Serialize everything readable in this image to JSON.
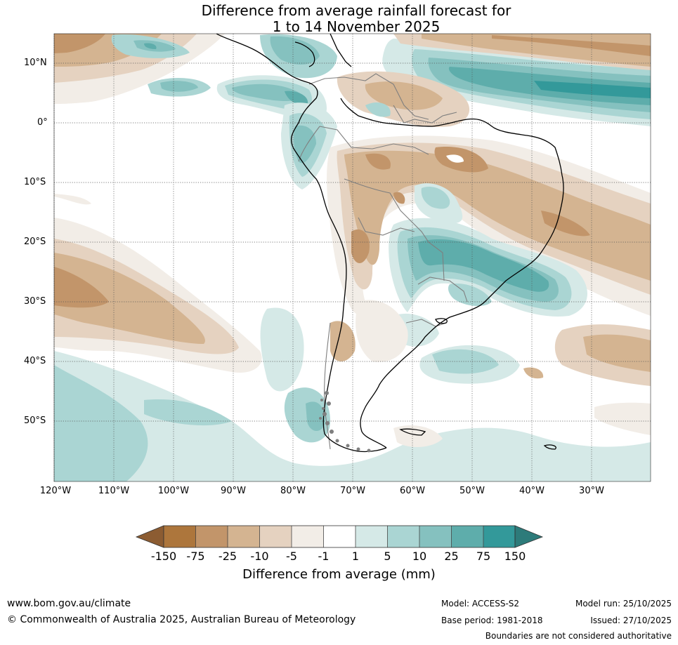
{
  "title": {
    "line1": "Difference from average rainfall forecast for",
    "line2": "1 to 14 November 2025"
  },
  "map": {
    "region": "South America and surrounding oceans",
    "lat_labels": [
      "10°N",
      "0°",
      "10°S",
      "20°S",
      "30°S",
      "40°S",
      "50°S"
    ],
    "lon_labels": [
      "120°W",
      "110°W",
      "100°W",
      "90°W",
      "80°W",
      "70°W",
      "60°W",
      "50°W",
      "40°W",
      "30°W"
    ]
  },
  "colorbar": {
    "ticks": [
      "-150",
      "-75",
      "-25",
      "-10",
      "-5",
      "-1",
      "1",
      "5",
      "10",
      "25",
      "75",
      "150"
    ],
    "colors": [
      "#8c5c32",
      "#ad763c",
      "#c2956a",
      "#d4b491",
      "#e5d2c0",
      "#f2ede7",
      "#ffffff",
      "#d5e9e7",
      "#aad5d3",
      "#85c1bf",
      "#5eadab",
      "#33999a",
      "#2d7b7a"
    ],
    "label": "Difference from average (mm)"
  },
  "footer": {
    "url": "www.bom.gov.au/climate",
    "copyright": "© Commonwealth of Australia 2025, Australian Bureau of Meteorology",
    "model": "Model: ACCESS-S2",
    "base_period": "Base period: 1981-2018",
    "model_run": "Model run: 25/10/2025",
    "issued": "Issued: 27/10/2025",
    "disclaimer": "Boundaries are not considered authoritative"
  }
}
